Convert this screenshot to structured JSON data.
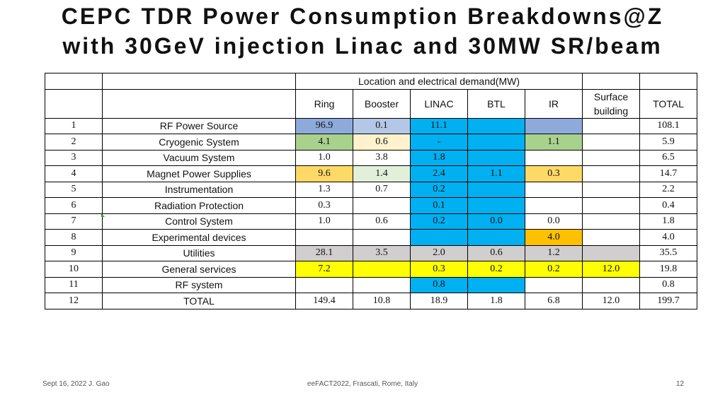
{
  "slide": {
    "title_line1": "CEPC TDR Power Consumption Breakdowns@Z",
    "title_line2": "with 30GeV injection Linac and 30MW SR/beam"
  },
  "table": {
    "group_header": "Location and electrical demand(MW)",
    "columns": [
      "Ring",
      "Booster",
      "LINAC",
      "BTL",
      "IR",
      "Surface building",
      "TOTAL"
    ],
    "column_label_surface_line1": "Surface",
    "column_label_surface_line2": "building",
    "rows": [
      {
        "idx": "1",
        "name": "RF Power Source",
        "cells": [
          "96.9",
          "0.1",
          "11.1",
          "",
          "",
          "",
          "108.1"
        ]
      },
      {
        "idx": "2",
        "name": "Cryogenic System",
        "cells": [
          "4.1",
          "0.6",
          "-",
          "",
          "1.1",
          "",
          "5.9"
        ]
      },
      {
        "idx": "3",
        "name": "Vacuum System",
        "cells": [
          "1.0",
          "3.8",
          "1.8",
          "",
          "",
          "",
          "6.5"
        ]
      },
      {
        "idx": "4",
        "name": "Magnet Power Supplies",
        "cells": [
          "9.6",
          "1.4",
          "2.4",
          "1.1",
          "0.3",
          "",
          "14.7"
        ]
      },
      {
        "idx": "5",
        "name": "Instrumentation",
        "cells": [
          "1.3",
          "0.7",
          "0.2",
          "",
          "",
          "",
          "2.2"
        ]
      },
      {
        "idx": "6",
        "name": "Radiation Protection",
        "cells": [
          "0.3",
          "",
          "0.1",
          "",
          "",
          "",
          "0.4"
        ]
      },
      {
        "idx": "7",
        "name": "Control System",
        "cells": [
          "1.0",
          "0.6",
          "0.2",
          "0.0",
          "0.0",
          "",
          "1.8"
        ]
      },
      {
        "idx": "8",
        "name": "Experimental devices",
        "cells": [
          "",
          "",
          "",
          "",
          "4.0",
          "",
          "4.0"
        ]
      },
      {
        "idx": "9",
        "name": "Utilities",
        "cells": [
          "28.1",
          "3.5",
          "2.0",
          "0.6",
          "1.2",
          "",
          "35.5"
        ]
      },
      {
        "idx": "10",
        "name": "General services",
        "cells": [
          "7.2",
          "",
          "0.3",
          "0.2",
          "0.2",
          "12.0",
          "19.8"
        ]
      },
      {
        "idx": "11",
        "name": "RF system",
        "cells": [
          "",
          "",
          "0.8",
          "",
          "",
          "",
          "0.8"
        ]
      },
      {
        "idx": "12",
        "name": "TOTAL",
        "cells": [
          "149.4",
          "10.8",
          "18.9",
          "1.8",
          "6.8",
          "12.0",
          "199.7"
        ]
      }
    ],
    "cell_colors": [
      [
        "#8eaadb",
        "#b4c7e7",
        "#00b0f0",
        "#00b0f0",
        "#8eaadb",
        "",
        ""
      ],
      [
        "#a9d18e",
        "#fff2cc",
        "#00b0f0",
        "#00b0f0",
        "#a9d18e",
        "",
        ""
      ],
      [
        "",
        "",
        "#00b0f0",
        "#00b0f0",
        "",
        "",
        ""
      ],
      [
        "#ffd966",
        "#e2f0d9",
        "#00b0f0",
        "#00b0f0",
        "#ffd966",
        "",
        ""
      ],
      [
        "",
        "",
        "#00b0f0",
        "#00b0f0",
        "",
        "",
        ""
      ],
      [
        "",
        "",
        "#00b0f0",
        "#00b0f0",
        "",
        "",
        ""
      ],
      [
        "",
        "",
        "#00b0f0",
        "#00b0f0",
        "",
        "",
        ""
      ],
      [
        "",
        "",
        "#00b0f0",
        "#00b0f0",
        "#ffc000",
        "",
        ""
      ],
      [
        "#d0cece",
        "#d0cece",
        "#d0cece",
        "#d0cece",
        "#d0cece",
        "#d0cece",
        ""
      ],
      [
        "#ffff00",
        "#ffff00",
        "#ffff00",
        "#ffff00",
        "#ffff00",
        "#ffff00",
        ""
      ],
      [
        "",
        "",
        "#00b0f0",
        "#00b0f0",
        "",
        "",
        ""
      ],
      [
        "",
        "",
        "",
        "",
        "",
        "",
        ""
      ]
    ]
  },
  "footer": {
    "left": "Sept 16, 2022 J. Gao",
    "center": "eeFACT2022, Frascati, Rome, Italy",
    "right": "12"
  }
}
